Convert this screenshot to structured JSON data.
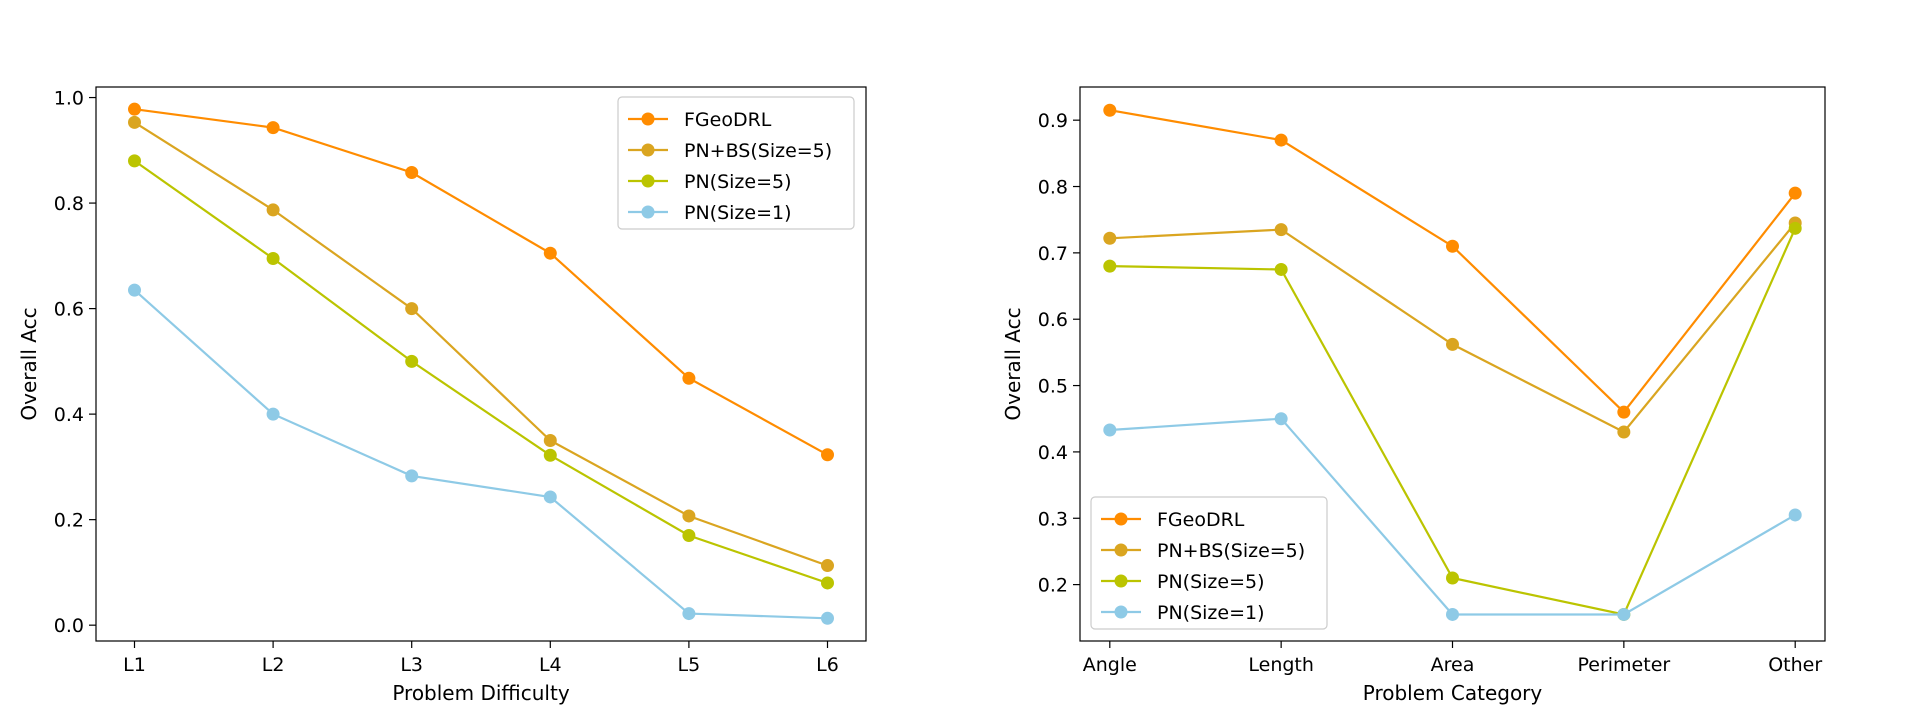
{
  "colors": {
    "series": [
      "#ff8c00",
      "#daa520",
      "#bbc400",
      "#8ecae6"
    ],
    "axes": "#000000",
    "legend_border": "#cccccc"
  },
  "chart_data": [
    {
      "type": "line",
      "title": "",
      "xlabel": "Problem Difficulty",
      "ylabel": "Overall Acc",
      "categories": [
        "L1",
        "L2",
        "L3",
        "L4",
        "L5",
        "L6"
      ],
      "ylim": [
        -0.03,
        1.02
      ],
      "yticks": [
        0.0,
        0.2,
        0.4,
        0.6,
        0.8,
        1.0
      ],
      "ytick_labels": [
        "0.0",
        "0.2",
        "0.4",
        "0.6",
        "0.8",
        "1.0"
      ],
      "legend_position": "upper-right",
      "grid": false,
      "series": [
        {
          "name": "FGeoDRL",
          "values": [
            0.978,
            0.943,
            0.858,
            0.705,
            0.468,
            0.323
          ]
        },
        {
          "name": "PN+BS(Size=5)",
          "values": [
            0.953,
            0.787,
            0.6,
            0.35,
            0.207,
            0.113
          ]
        },
        {
          "name": "PN(Size=5)",
          "values": [
            0.88,
            0.695,
            0.5,
            0.322,
            0.17,
            0.08
          ]
        },
        {
          "name": "PN(Size=1)",
          "values": [
            0.635,
            0.4,
            0.283,
            0.243,
            0.022,
            0.013
          ]
        }
      ]
    },
    {
      "type": "line",
      "title": "",
      "xlabel": "Problem Category",
      "ylabel": "Overall Acc",
      "categories": [
        "Angle",
        "Length",
        "Area",
        "Perimeter",
        "Other"
      ],
      "ylim": [
        0.115,
        0.95
      ],
      "yticks": [
        0.2,
        0.3,
        0.4,
        0.5,
        0.6,
        0.7,
        0.8,
        0.9
      ],
      "ytick_labels": [
        "0.2",
        "0.3",
        "0.4",
        "0.5",
        "0.6",
        "0.7",
        "0.8",
        "0.9"
      ],
      "legend_position": "lower-left",
      "grid": false,
      "series": [
        {
          "name": "FGeoDRL",
          "values": [
            0.915,
            0.87,
            0.71,
            0.46,
            0.79
          ]
        },
        {
          "name": "PN+BS(Size=5)",
          "values": [
            0.722,
            0.735,
            0.562,
            0.43,
            0.745
          ]
        },
        {
          "name": "PN(Size=5)",
          "values": [
            0.68,
            0.675,
            0.21,
            0.155,
            0.737
          ]
        },
        {
          "name": "PN(Size=1)",
          "values": [
            0.433,
            0.45,
            0.155,
            0.155,
            0.305
          ]
        }
      ]
    }
  ]
}
